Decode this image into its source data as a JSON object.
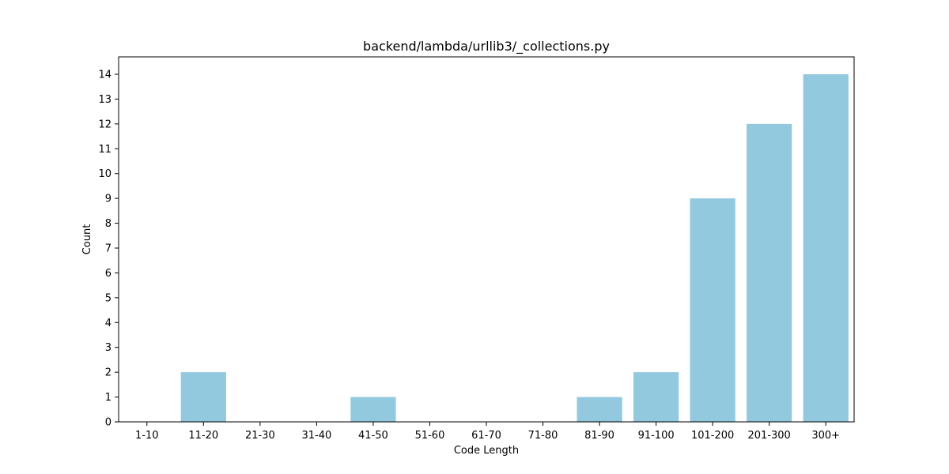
{
  "chart_data": {
    "type": "bar",
    "title": "backend/lambda/urllib3/_collections.py",
    "xlabel": "Code Length",
    "ylabel": "Count",
    "categories": [
      "1-10",
      "11-20",
      "21-30",
      "31-40",
      "41-50",
      "51-60",
      "61-70",
      "71-80",
      "81-90",
      "91-100",
      "101-200",
      "201-300",
      "300+"
    ],
    "values": [
      0,
      2,
      0,
      0,
      1,
      0,
      0,
      0,
      1,
      2,
      9,
      12,
      14
    ],
    "ylim": [
      0,
      14.7
    ],
    "yticks": [
      0,
      1,
      2,
      3,
      4,
      5,
      6,
      7,
      8,
      9,
      10,
      11,
      12,
      13,
      14
    ],
    "grid": false,
    "bar_color": "#92c9df",
    "axis_color": "#000000"
  }
}
